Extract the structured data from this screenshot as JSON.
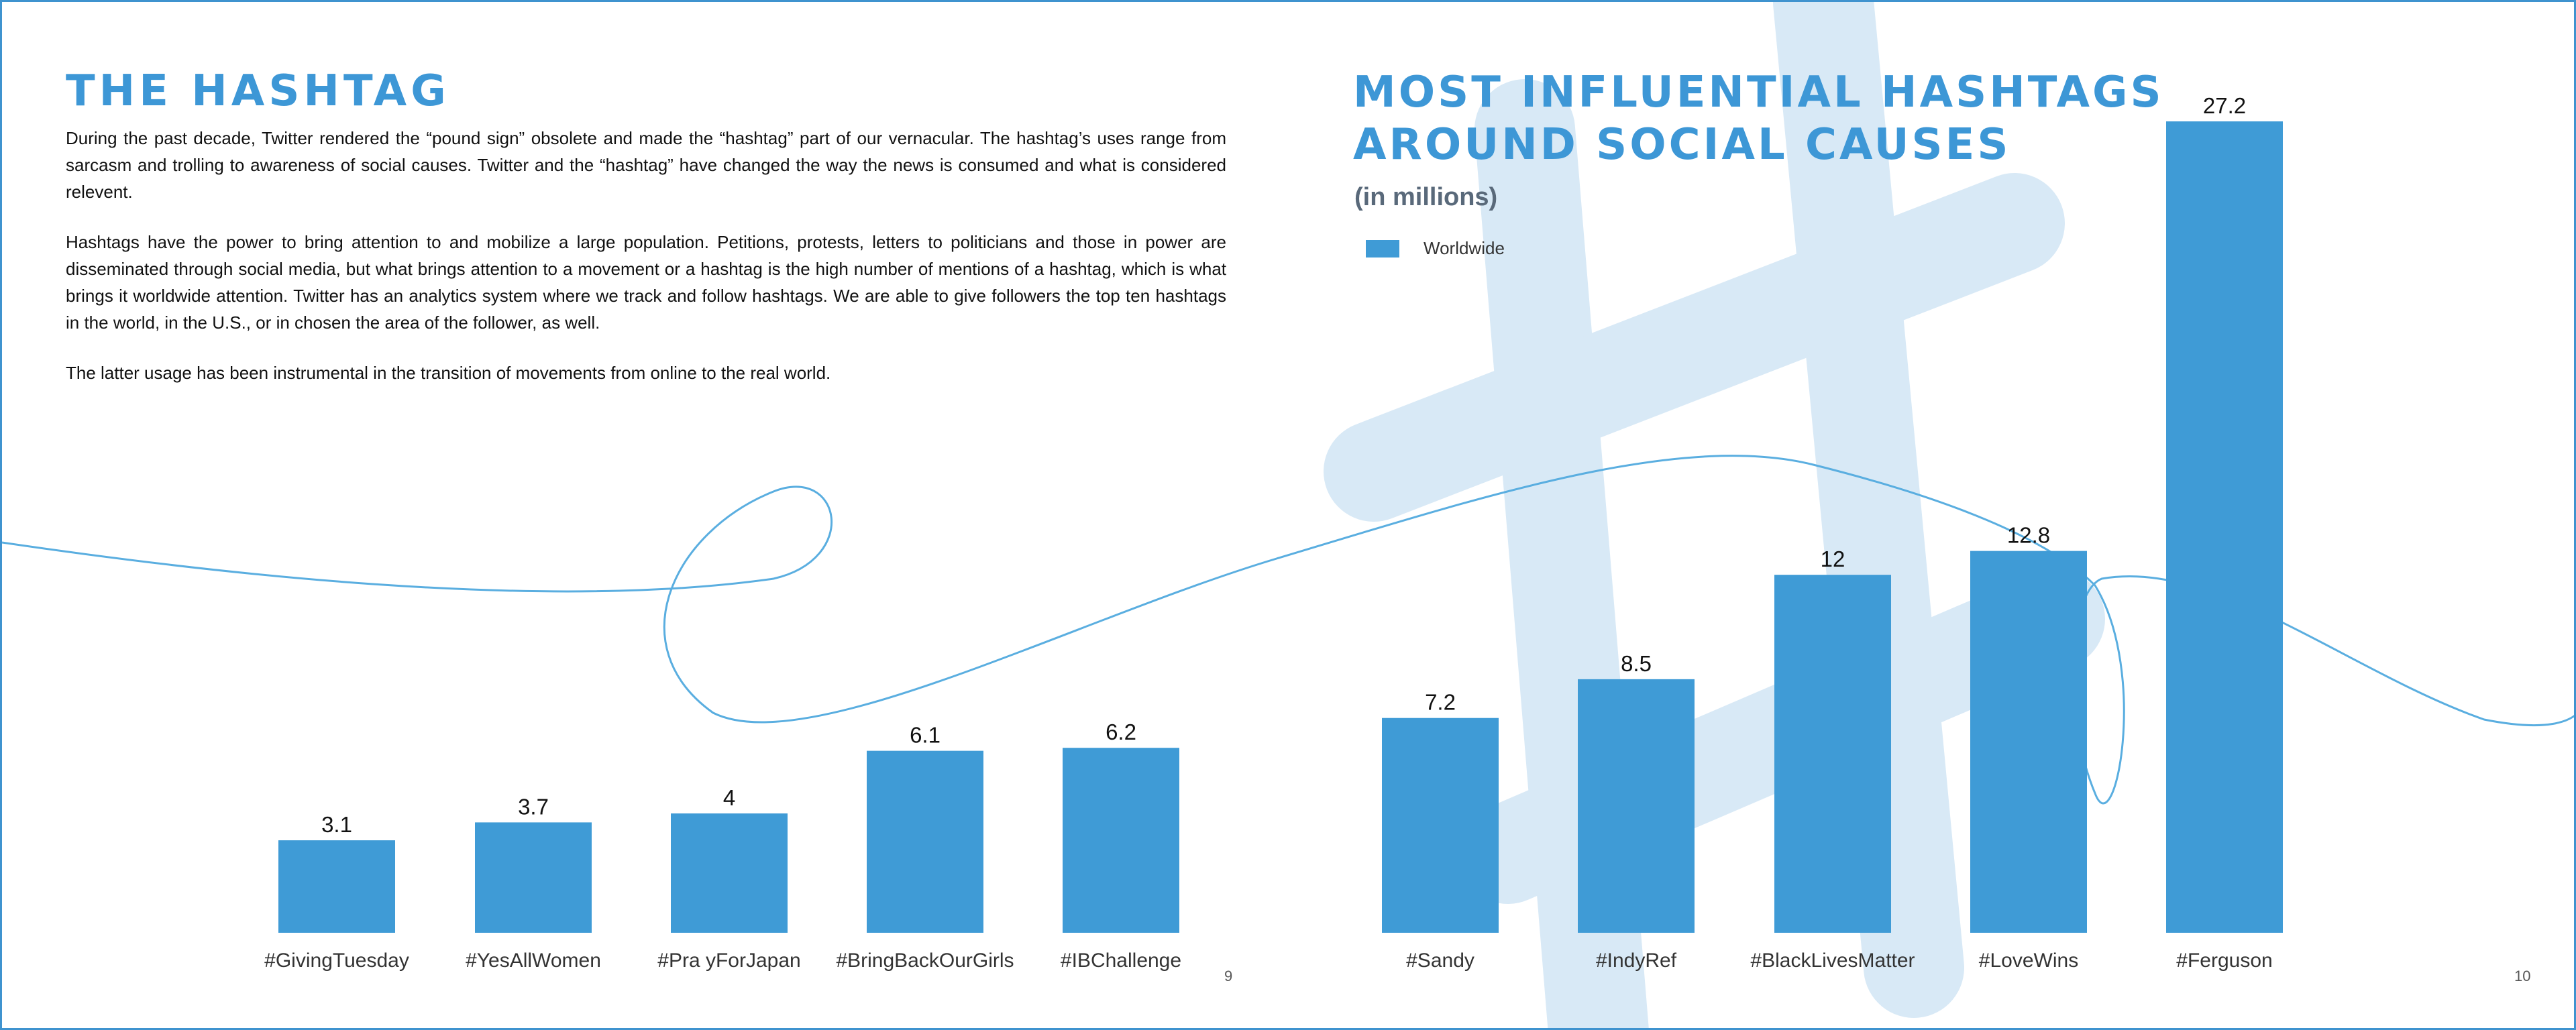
{
  "left": {
    "title": "THE HASHTAG",
    "paragraphs": [
      "During the past decade, Twitter rendered the “pound sign” obsolete and made the “hashtag” part of our vernacular. The hashtag’s uses range from sarcasm and trolling to awareness of social causes. Twitter and the “hashtag” have changed the way the news is consumed and what is considered relevent.",
      "Hashtags have the power to bring attention to and mobilize a large population. Petitions, protests, letters to politicians and those in power are disseminated through social media, but what brings attention to a movement or a hashtag is the high number of mentions of a hashtag, which is what brings it worldwide attention. Twitter has an analytics system where we track and follow hashtags. We are able to give followers the top ten hashtags in the world, in the U.S., or in chosen the area of the follower, as well.",
      "The latter usage has been instrumental in the transition of movements from online to the real world."
    ],
    "page_number": "9"
  },
  "right": {
    "title_line1": "MOST INFLUENTIAL HASHTAGS",
    "title_line2": "AROUND SOCIAL CAUSES",
    "subtitle": "(in millions)",
    "page_number": "10"
  },
  "colors": {
    "bar": "#3f9bd6",
    "title": "#3d97d6",
    "hashtag_watermark": "#d8e9f6",
    "curve": "#5aaee0"
  },
  "chart_data": {
    "type": "bar",
    "title": "MOST INFLUENTIAL HASHTAGS AROUND SOCIAL CAUSES",
    "subtitle": "(in millions)",
    "legend": {
      "position": "top-left",
      "entries": [
        "Worldwide"
      ]
    },
    "categories": [
      "#GivingTuesday",
      "#YesAllWomen",
      "#Pra yForJapan",
      "#BringBackOurGirls",
      "#IBChallenge",
      "#Sandy",
      "#IndyRef",
      "#BlackLivesMatter",
      "#LoveWins",
      "#Ferguson"
    ],
    "series": [
      {
        "name": "Worldwide",
        "values": [
          3.1,
          3.7,
          4,
          6.1,
          6.2,
          7.2,
          8.5,
          12,
          12.8,
          27.2
        ]
      }
    ],
    "ylim": [
      0,
      27.2
    ],
    "grid": false,
    "data_labels": true
  }
}
